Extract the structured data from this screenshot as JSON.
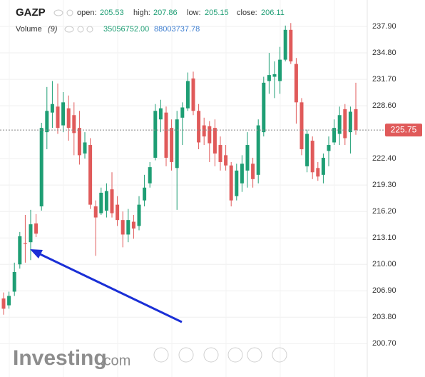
{
  "chart_data": {
    "type": "candlestick",
    "symbol": "GAZP",
    "header": {
      "open_label": "open:",
      "open": 205.53,
      "high_label": "high:",
      "high": 207.86,
      "low_label": "low:",
      "low": 205.15,
      "close_label": "close:",
      "close": 206.11,
      "volume_label": "Volume",
      "volume_period": "(9)",
      "volume_values": [
        "35056752.00",
        "88003737.78"
      ]
    },
    "watermark": "Investing",
    "watermark_suffix": ".com",
    "up_color": "#1e9e74",
    "down_color": "#e05a5a",
    "grid": true,
    "ylim": [
      198.3,
      241.0
    ],
    "yticks": [
      {
        "value": 200.7,
        "label": "200.70"
      },
      {
        "value": 203.8,
        "label": "203.80"
      },
      {
        "value": 206.9,
        "label": "206.90"
      },
      {
        "value": 210.0,
        "label": "210.00"
      },
      {
        "value": 213.1,
        "label": "213.10"
      },
      {
        "value": 216.2,
        "label": "216.20"
      },
      {
        "value": 219.3,
        "label": "219.30"
      },
      {
        "value": 222.4,
        "label": "222.40"
      },
      {
        "value": 228.6,
        "label": "228.60"
      },
      {
        "value": 231.7,
        "label": "231.70"
      },
      {
        "value": 234.8,
        "label": "234.80"
      },
      {
        "value": 237.9,
        "label": "237.90"
      }
    ],
    "open": [
      206.0,
      205.2,
      206.8,
      210.0,
      212.5,
      212.6,
      214.8,
      216.8,
      225.5,
      227.8,
      228.5,
      226.3,
      228.3,
      227.5,
      226.0,
      223.0,
      224.0,
      216.8,
      216.0,
      216.3,
      218.8,
      217.0,
      215.2,
      213.5,
      215.0,
      214.5,
      217.5,
      219.5,
      222.5,
      227.0,
      227.8,
      226.0,
      221.3,
      227.2,
      228.3,
      231.8,
      228.0,
      226.3,
      226.2,
      226.0,
      224.0,
      222.8,
      221.6,
      218.0,
      219.5,
      221.0,
      221.8,
      220.5,
      225.5,
      231.5,
      232.0,
      231.5,
      234.0,
      237.5,
      233.5,
      229.0,
      221.5,
      224.5,
      221.3,
      220.5,
      223.3,
      224.3,
      225.3,
      228.2,
      225.5,
      228.2
    ],
    "high": [
      206.7,
      206.8,
      210.2,
      213.8,
      215.8,
      216.4,
      215.9,
      226.6,
      230.8,
      231.5,
      231.2,
      230.2,
      229.8,
      229.0,
      228.0,
      225.5,
      224.8,
      217.5,
      219.0,
      219.5,
      220.8,
      218.0,
      216.2,
      216.5,
      215.8,
      218.0,
      220.5,
      222.0,
      228.8,
      229.3,
      228.5,
      227.0,
      228.0,
      229.0,
      232.5,
      232.6,
      228.8,
      227.2,
      226.8,
      227.0,
      225.0,
      224.0,
      222.0,
      221.8,
      222.8,
      225.5,
      222.5,
      227.0,
      232.0,
      234.8,
      233.8,
      235.5,
      238.0,
      238.3,
      234.2,
      229.5,
      225.8,
      225.0,
      222.0,
      223.0,
      225.0,
      227.0,
      228.5,
      228.8,
      228.5,
      231.3
    ],
    "low": [
      204.1,
      204.8,
      206.3,
      209.5,
      210.2,
      210.5,
      213.2,
      216.3,
      223.5,
      226.0,
      225.3,
      225.5,
      224.5,
      222.8,
      221.7,
      222.4,
      216.5,
      211.0,
      215.8,
      215.5,
      215.5,
      214.5,
      212.0,
      212.6,
      213.0,
      214.0,
      216.8,
      219.0,
      222.2,
      225.5,
      221.5,
      221.0,
      216.4,
      224.0,
      228.0,
      227.5,
      223.5,
      224.0,
      222.0,
      221.5,
      221.0,
      221.0,
      216.8,
      217.5,
      218.5,
      219.0,
      219.0,
      219.5,
      225.0,
      230.0,
      229.5,
      230.0,
      233.8,
      233.5,
      226.5,
      222.8,
      220.8,
      220.0,
      219.8,
      219.5,
      221.5,
      224.0,
      224.0,
      224.0,
      223.0,
      225.2
    ],
    "close": [
      204.8,
      206.3,
      209.1,
      213.3,
      212.4,
      214.7,
      213.6,
      226.0,
      228.0,
      228.8,
      226.0,
      229.0,
      226.0,
      225.4,
      222.8,
      224.3,
      217.0,
      215.5,
      218.4,
      218.6,
      216.0,
      215.2,
      213.5,
      215.2,
      214.2,
      217.0,
      219.0,
      221.4,
      228.0,
      228.3,
      222.5,
      222.0,
      227.0,
      228.4,
      231.5,
      228.0,
      224.3,
      225.0,
      224.2,
      223.0,
      222.0,
      221.6,
      217.5,
      221.0,
      221.8,
      224.0,
      220.0,
      226.3,
      231.3,
      232.2,
      232.3,
      234.0,
      237.5,
      233.8,
      229.0,
      223.5,
      225.3,
      220.8,
      220.3,
      222.5,
      224.0,
      226.0,
      227.5,
      224.8,
      227.9,
      225.75
    ]
  }
}
